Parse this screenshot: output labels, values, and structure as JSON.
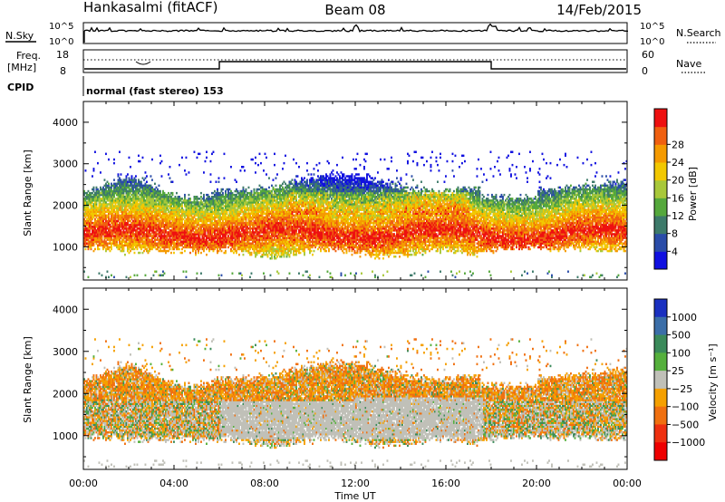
{
  "header": {
    "station": "Hankasalmi (fitACF)",
    "beam": "Beam 08",
    "date": "14/Feb/2015"
  },
  "noise_panel": {
    "left_label": "N.Sky",
    "right_label": "N.Search",
    "left_ticks": [
      "10^5",
      "10^0"
    ],
    "right_ticks": [
      "10^5",
      "10^0"
    ]
  },
  "freq_panel": {
    "left_label_line1": "Freq.",
    "left_label_line2": "[MHz]",
    "right_label": "Nave",
    "left_ticks": [
      "18",
      "8"
    ],
    "right_ticks": [
      "60",
      "0"
    ]
  },
  "cpid": {
    "label": "CPID",
    "mode_text": "normal (fast stereo) 153"
  },
  "x_axis": {
    "label": "Time UT",
    "tick_labels": [
      "00:00",
      "04:00",
      "08:00",
      "12:00",
      "16:00",
      "20:00",
      "00:00"
    ],
    "tick_hours": [
      0,
      4,
      8,
      12,
      16,
      20,
      24
    ],
    "range_hours": [
      0,
      24
    ]
  },
  "chart_data": [
    {
      "type": "heatmap",
      "name": "power",
      "xlabel": "Time UT",
      "ylabel": "Slant Range [km]",
      "yticks": [
        "1000",
        "2000",
        "3000",
        "4000"
      ],
      "ylim": [
        200,
        4500
      ],
      "colorbar": {
        "label": "Power [dB]",
        "tick_labels": [
          "4",
          "8",
          "12",
          "16",
          "20",
          "24",
          "28"
        ],
        "colors": [
          "#1010e0",
          "#2a4ca8",
          "#3d7a6a",
          "#55a83c",
          "#a8c83a",
          "#f2c800",
          "#f59a00",
          "#f06010",
          "#ee1010"
        ]
      }
    },
    {
      "type": "heatmap",
      "name": "velocity",
      "xlabel": "Time UT",
      "ylabel": "Slant Range [km]",
      "yticks": [
        "1000",
        "2000",
        "3000",
        "4000"
      ],
      "ylim": [
        200,
        4500
      ],
      "colorbar": {
        "label": "Velocity [m s⁻¹]",
        "tick_labels": [
          "1000",
          "500",
          "100",
          "25",
          "−25",
          "−100",
          "−500",
          "−1000"
        ],
        "colors": [
          "#1a30c0",
          "#3b6ea8",
          "#3a8a5a",
          "#55b03c",
          "#c0c0b8",
          "#f5a000",
          "#f07010",
          "#ee3010",
          "#ee0000"
        ]
      }
    }
  ]
}
